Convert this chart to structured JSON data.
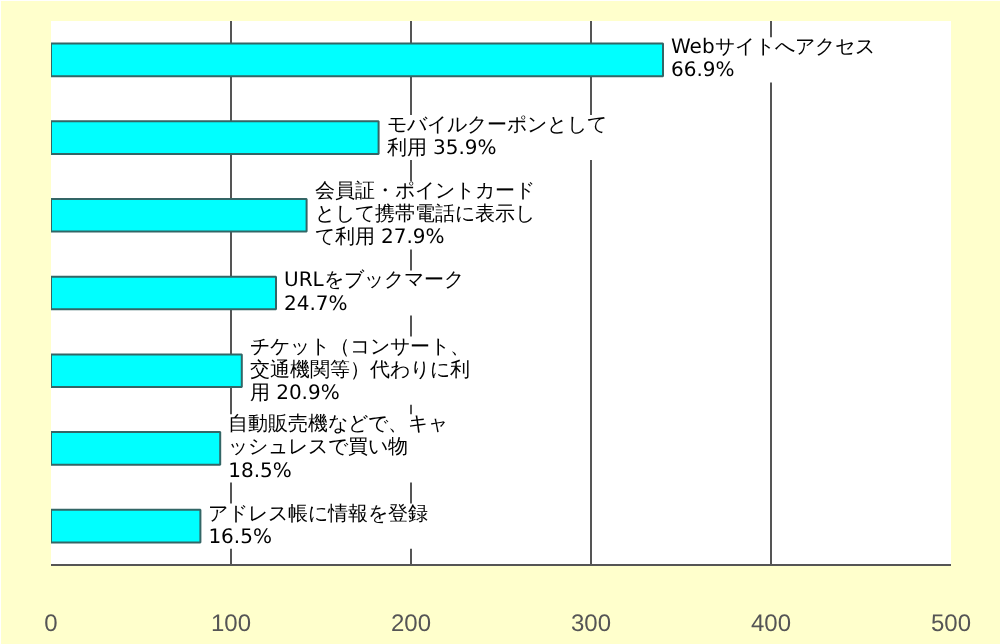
{
  "chart_data": {
    "type": "bar",
    "orientation": "horizontal",
    "categories": [
      null,
      null,
      null,
      null,
      null,
      null,
      null
    ],
    "values": [
      340,
      182,
      142,
      125,
      106,
      94,
      83
    ],
    "value_labels": [
      "Webサイトへアクセス 66.9%",
      "モバイルクーポンとして利用  35.9%",
      "会員証・ポイントカードとして携帯電話に表示して利用 27.9%",
      "URLをブックマーク 24.7%",
      "チケット（コンサート、交通機関等）代わりに利用 20.9%",
      "自動販売機などで、キャッシュレスで買い物 18.5%",
      "アドレス帳に情報を登録  16.5%"
    ],
    "color": "#00ffff",
    "xlim": [
      0,
      500
    ],
    "xticks": [
      0,
      100,
      200,
      300,
      400,
      500
    ],
    "grid": "x",
    "tick_labels": "x"
  }
}
